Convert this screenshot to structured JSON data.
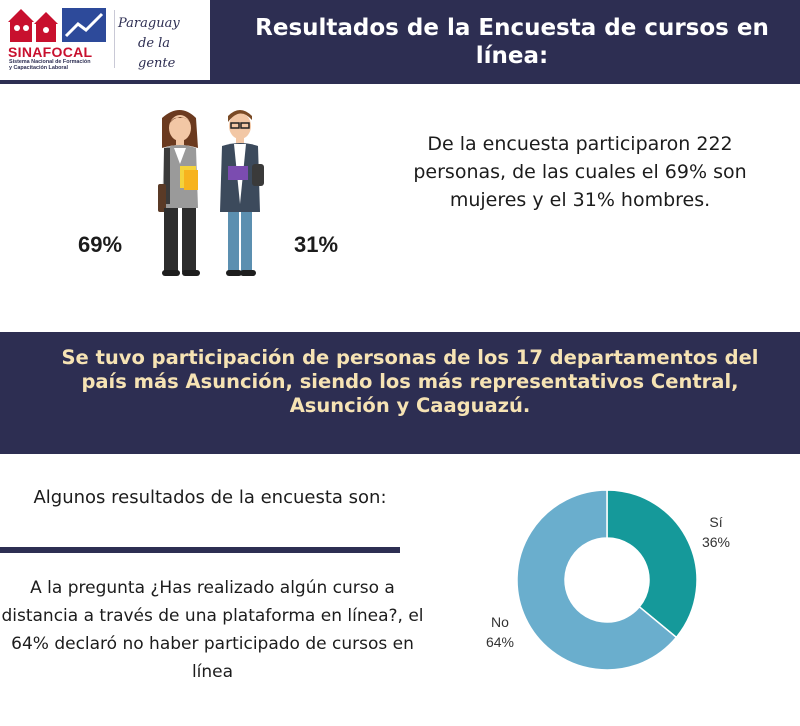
{
  "logo": {
    "name": "SINAFOCAL",
    "subtitle_line1": "Sistema Nacional de Formación",
    "subtitle_line2": "y Capacitación Laboral",
    "slogan_line1": "Paraguay",
    "slogan_line2": "de la gente"
  },
  "header": {
    "title": "Resultados de la Encuesta de cursos en línea:"
  },
  "participants": {
    "women_pct_label": "69%",
    "men_pct_label": "31%",
    "text": "De la encuesta participaron 222 personas, de las cuales el 69% son mujeres y el 31% hombres."
  },
  "band": {
    "text": "Se tuvo participación de personas de los 17 departamentos del país más Asunción, siendo los más representativos Central, Asunción y Caaguazú."
  },
  "results": {
    "heading": "Algunos resultados de la encuesta son:",
    "question": "A la pregunta ¿Has realizado algún curso a distancia a través de una plataforma en línea?, el 64% declaró no haber participado de cursos en línea"
  },
  "colors": {
    "navy": "#2d2e52",
    "band_text": "#f6e3b4",
    "si": "#15999a",
    "no": "#6aaecd"
  },
  "chart_data": {
    "type": "pie",
    "donut": true,
    "slices": [
      {
        "label": "Sí",
        "value": 36,
        "value_label": "36%",
        "color": "#15999a"
      },
      {
        "label": "No",
        "value": 64,
        "value_label": "64%",
        "color": "#6aaecd"
      }
    ]
  }
}
